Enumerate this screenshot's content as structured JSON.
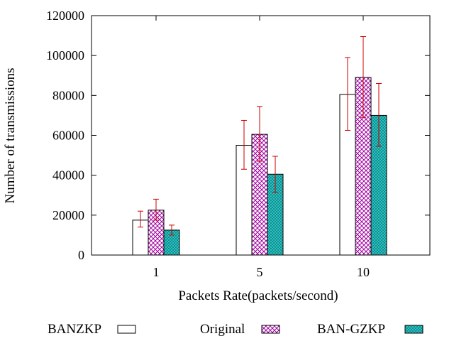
{
  "chart_data": {
    "type": "bar",
    "title": "",
    "xlabel": "Packets Rate(packets/second)",
    "ylabel": "Number of transmissions",
    "categories": [
      "1",
      "5",
      "10"
    ],
    "ylim": [
      0,
      120000
    ],
    "yticks": [
      0,
      20000,
      40000,
      60000,
      80000,
      100000,
      120000
    ],
    "grid": false,
    "legend_position": "bottom",
    "error_bars": true,
    "series": [
      {
        "name": "BANZKP",
        "pattern": "empty",
        "color": "#ffffff",
        "values": [
          17500,
          55000,
          80500
        ],
        "error_low": [
          14000,
          43000,
          62500
        ],
        "error_high": [
          22000,
          67500,
          99000
        ]
      },
      {
        "name": "Original",
        "pattern": "crosshatch",
        "color": "#a000a0",
        "values": [
          22500,
          60500,
          89000
        ],
        "error_low": [
          17500,
          47000,
          69000
        ],
        "error_high": [
          28000,
          74500,
          109500
        ]
      },
      {
        "name": "BAN-GZKP",
        "pattern": "crosshatch",
        "color": "#00b0b0",
        "values": [
          12500,
          40500,
          70000
        ],
        "error_low": [
          10000,
          31500,
          54500
        ],
        "error_high": [
          15000,
          49500,
          86000
        ]
      }
    ],
    "error_bar_color": "#cc0000"
  }
}
